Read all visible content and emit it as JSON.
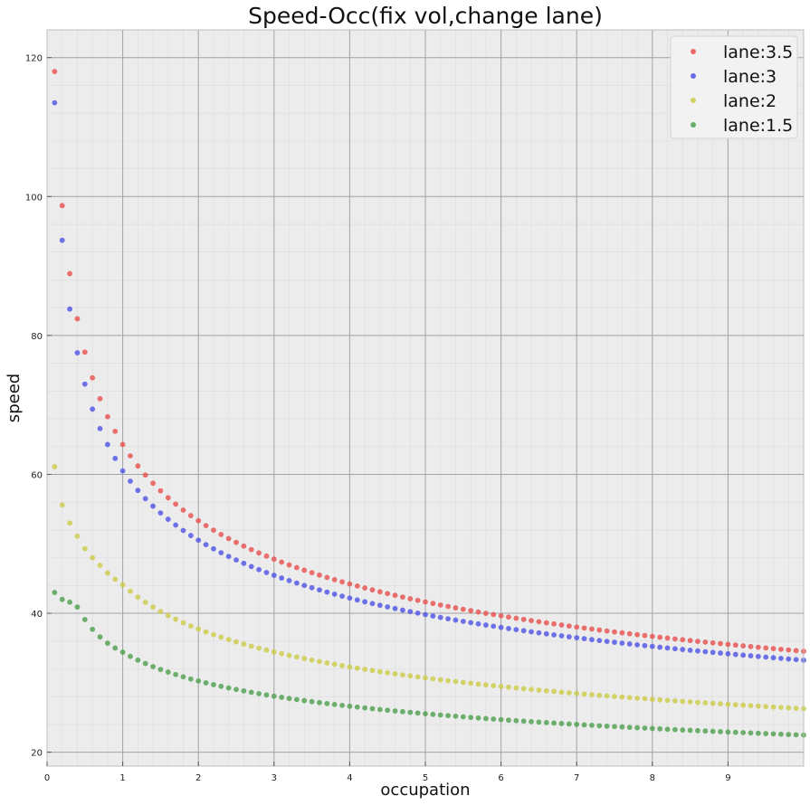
{
  "chart_data": {
    "type": "scatter",
    "title": "Speed-Occ(fix vol,change lane)",
    "xlabel": "occupation",
    "ylabel": "speed",
    "xlim": [
      0,
      10
    ],
    "ylim": [
      18,
      124
    ],
    "x_ticks": [
      0,
      1,
      2,
      3,
      4,
      5,
      6,
      7,
      8,
      9
    ],
    "x_tick_labels": [
      "0",
      "1",
      "2",
      "3",
      "4",
      "5",
      "6",
      "7",
      "8",
      "9"
    ],
    "y_ticks": [
      20,
      40,
      60,
      80,
      100,
      120
    ],
    "y_tick_labels": [
      "20",
      "40",
      "60",
      "80",
      "100",
      "120"
    ],
    "grid": true,
    "minor_grid": true,
    "legend_position": "top-right",
    "x": {
      "start": 0.1,
      "step": 0.1,
      "count": 100
    },
    "series": [
      {
        "name": "lane:3.5",
        "color": "#e8524f",
        "pattern": [
          118.0,
          98.7,
          88.9,
          82.4,
          77.6,
          73.9,
          70.9,
          68.3,
          66.2,
          64.3
        ],
        "a": 64.3,
        "b": 0.27
      },
      {
        "name": "lane:3",
        "color": "#4f55e6",
        "pattern": [
          113.5,
          93.7,
          83.8,
          77.5,
          73.0,
          69.4,
          66.6,
          64.3,
          62.3,
          60.5
        ],
        "a": 60.5,
        "b": 0.26
      },
      {
        "name": "lane:2",
        "color": "#cccc4a",
        "pattern": [
          61.1,
          55.6,
          53.0,
          51.1,
          49.3,
          48.0,
          46.9,
          45.8,
          44.9,
          44.1
        ],
        "a": 44.1,
        "b": 0.225
      },
      {
        "name": "lane:1.5",
        "color": "#4fa04f",
        "pattern": [
          43.0,
          42.0,
          41.6,
          40.9,
          39.1,
          37.7,
          36.6,
          35.7,
          35.0,
          34.4
        ],
        "a": 34.4,
        "b": 0.185
      }
    ]
  }
}
